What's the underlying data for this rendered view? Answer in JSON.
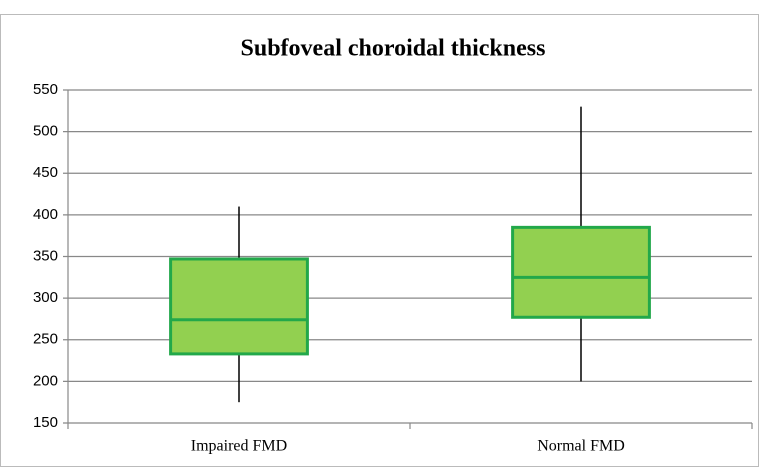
{
  "chart_data": {
    "type": "box",
    "title": "Subfoveal choroidal thickness",
    "categories": [
      "Impaired FMD",
      "Normal FMD"
    ],
    "min": [
      175,
      200
    ],
    "q1": [
      233,
      277
    ],
    "median": [
      274,
      325
    ],
    "q3": [
      347,
      385
    ],
    "max": [
      410,
      530
    ],
    "color": "#92d050",
    "edge_color": "#22a84a",
    "ylim": [
      150,
      550
    ],
    "yticks": [
      150,
      200,
      250,
      300,
      350,
      400,
      450,
      500,
      550
    ],
    "grid": true
  }
}
